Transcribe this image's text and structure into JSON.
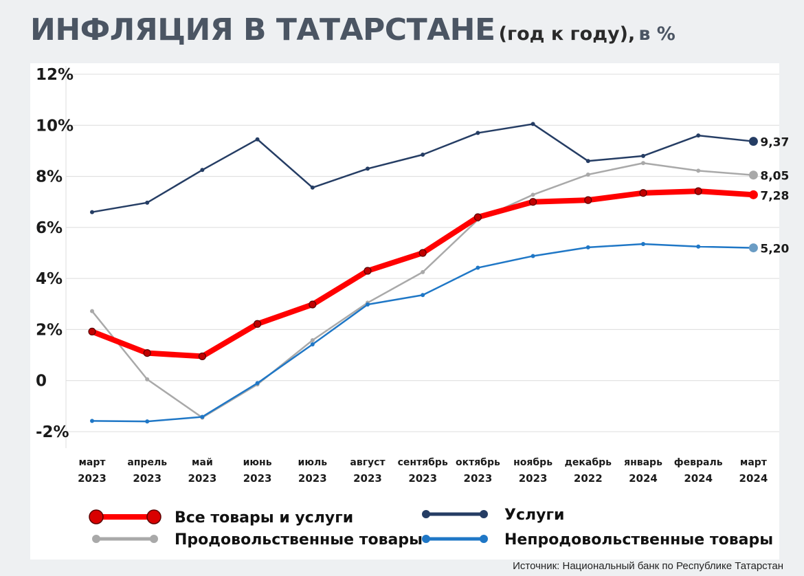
{
  "title": {
    "main": "ИНФЛЯЦИЯ В ТАТАРСТАНЕ",
    "sub": "(год к году),",
    "unit": "в %"
  },
  "source": "Источник: Национальный банк по Республике Татарстан",
  "chart_data": {
    "type": "line",
    "categories": [
      [
        "март",
        "2023"
      ],
      [
        "апрель",
        "2023"
      ],
      [
        "май",
        "2023"
      ],
      [
        "июнь",
        "2023"
      ],
      [
        "июль",
        "2023"
      ],
      [
        "август",
        "2023"
      ],
      [
        "сентябрь",
        "2023"
      ],
      [
        "октябрь",
        "2023"
      ],
      [
        "ноябрь",
        "2023"
      ],
      [
        "декабрь",
        "2022"
      ],
      [
        "январь",
        "2024"
      ],
      [
        "февраль",
        "2024"
      ],
      [
        "март",
        "2024"
      ]
    ],
    "y_ticks": [
      {
        "value": 12,
        "label": "12%"
      },
      {
        "value": 10,
        "label": "10%"
      },
      {
        "value": 8,
        "label": "8%"
      },
      {
        "value": 6,
        "label": "6%"
      },
      {
        "value": 4,
        "label": "4%"
      },
      {
        "value": 2,
        "label": "2%"
      },
      {
        "value": 0,
        "label": "0"
      },
      {
        "value": -2,
        "label": "-2%"
      }
    ],
    "ylim": [
      -2,
      12
    ],
    "grid": true,
    "legend_position": "bottom",
    "series": [
      {
        "name": "Услуги",
        "color": "#253d64",
        "end_label": "9,37",
        "values": [
          6.6,
          6.97,
          8.25,
          9.45,
          7.56,
          8.3,
          8.85,
          9.7,
          10.05,
          8.6,
          8.8,
          9.6,
          9.37
        ]
      },
      {
        "name": "Продовольственные товары",
        "color": "#a9a9a9",
        "end_label": "8,05",
        "values": [
          2.72,
          0.05,
          -1.45,
          -0.15,
          1.58,
          3.05,
          4.25,
          6.3,
          7.28,
          8.07,
          8.52,
          8.22,
          8.05
        ]
      },
      {
        "name": "Непродовольственные товары",
        "color": "#1f77c6",
        "end_label": "5,20",
        "values": [
          -1.58,
          -1.6,
          -1.42,
          -0.1,
          1.42,
          2.98,
          3.35,
          4.42,
          4.88,
          5.22,
          5.35,
          5.25,
          5.2
        ]
      },
      {
        "name": "Все товары и услуги",
        "color": "#ff0000",
        "end_label": "7,28",
        "values": [
          1.92,
          1.08,
          0.95,
          2.22,
          2.98,
          4.3,
          5.0,
          6.4,
          7.0,
          7.07,
          7.35,
          7.42,
          7.28
        ]
      }
    ]
  }
}
